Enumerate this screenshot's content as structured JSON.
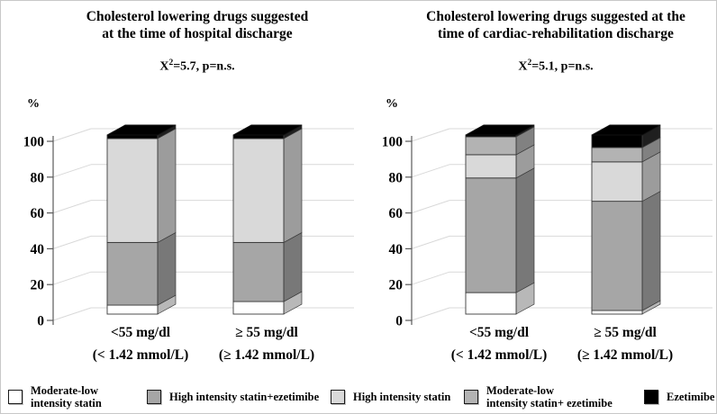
{
  "figure": {
    "background": "#ffffff",
    "text_color": "#000000",
    "gridline_color": "#d9d9d9",
    "axis_color": "#595959"
  },
  "legend": {
    "items": [
      {
        "line1": "Moderate-low",
        "line2": "intensity statin",
        "color": "#ffffff"
      },
      {
        "line1": "High intensity statin+ezetimibe",
        "line2": "",
        "color": "#a6a6a6"
      },
      {
        "line1": "High intensity statin",
        "line2": "",
        "color": "#d9d9d9"
      },
      {
        "line1": "Moderate-low",
        "line2": "intensity statin+ ezetimibe",
        "color": "#b3b3b3"
      },
      {
        "line1": "Ezetimibe",
        "line2": "",
        "color": "#000000"
      }
    ]
  },
  "chart_data": [
    {
      "type": "bar",
      "subtype": "stacked-3d-column",
      "title_line1": "Cholesterol lowering drugs suggested",
      "title_line2": "at the time of hospital discharge",
      "stat": {
        "base": "X",
        "sup": "2",
        "rest": "=5.7, p=n.s."
      },
      "ylabel": "%",
      "ylim": [
        0,
        100
      ],
      "yticks": [
        0,
        20,
        40,
        60,
        80,
        100
      ],
      "grid": true,
      "legend_position": "bottom",
      "categories": [
        "<55 mg/dl",
        "≥ 55 mg/dl"
      ],
      "categories_sub": [
        "(< 1.42 mmol/L)",
        "(≥ 1.42 mmol/L)"
      ],
      "series": [
        {
          "name": "Moderate-low intensity statin",
          "color": "#ffffff",
          "values": [
            5,
            7
          ]
        },
        {
          "name": "High intensity statin+ezetimibe",
          "color": "#a6a6a6",
          "values": [
            35,
            33
          ]
        },
        {
          "name": "High intensity statin",
          "color": "#d9d9d9",
          "values": [
            58,
            58
          ]
        },
        {
          "name": "Moderate-low intensity statin+ ezetimibe",
          "color": "#b3b3b3",
          "values": [
            0,
            0
          ]
        },
        {
          "name": "Ezetimibe",
          "color": "#000000",
          "values": [
            2,
            2
          ]
        }
      ]
    },
    {
      "type": "bar",
      "subtype": "stacked-3d-column",
      "title_line1": "Cholesterol lowering drugs suggested at the",
      "title_line2": "time of cardiac-rehabilitation discharge",
      "stat": {
        "base": "X",
        "sup": "2",
        "rest": "=5.1, p=n.s."
      },
      "ylabel": "%",
      "ylim": [
        0,
        100
      ],
      "yticks": [
        0,
        20,
        40,
        60,
        80,
        100
      ],
      "grid": true,
      "legend_position": "bottom",
      "categories": [
        "<55 mg/dl",
        "≥ 55 mg/dl"
      ],
      "categories_sub": [
        "(< 1.42 mmol/L)",
        "(≥ 1.42 mmol/L)"
      ],
      "series": [
        {
          "name": "Moderate-low intensity statin",
          "color": "#ffffff",
          "values": [
            12,
            2
          ]
        },
        {
          "name": "High intensity statin+ezetimibe",
          "color": "#a6a6a6",
          "values": [
            64,
            61
          ]
        },
        {
          "name": "High intensity statin",
          "color": "#d9d9d9",
          "values": [
            13,
            22
          ]
        },
        {
          "name": "Moderate-low intensity statin+ ezetimibe",
          "color": "#b3b3b3",
          "values": [
            10,
            8
          ]
        },
        {
          "name": "Ezetimibe",
          "color": "#000000",
          "values": [
            1,
            7
          ]
        }
      ]
    }
  ]
}
